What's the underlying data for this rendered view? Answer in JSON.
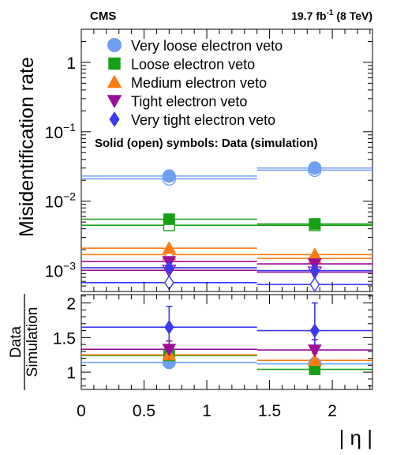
{
  "header": {
    "experiment": "CMS",
    "lumi_value": "19.7 fb",
    "lumi_exp": "-1",
    "lumi_energy": " (8 TeV)"
  },
  "note": "Solid (open) symbols: Data (simulation)",
  "chart_data": [
    {
      "type": "scatter",
      "panel": "top",
      "ylabel": "Misidentification rate",
      "yscale": "log",
      "ylim": [
        0.0005,
        3
      ],
      "xlim": [
        0,
        2.32
      ],
      "y_ticklabels": [
        {
          "value": 1,
          "base": "1",
          "exp": ""
        },
        {
          "value": 0.1,
          "base": "10",
          "exp": "−1"
        },
        {
          "value": 0.01,
          "base": "10",
          "exp": "−2"
        },
        {
          "value": 0.001,
          "base": "10",
          "exp": "−3"
        }
      ],
      "bins": [
        [
          0,
          1.4
        ],
        [
          1.4,
          2.32
        ]
      ],
      "x": [
        0.7,
        1.86
      ],
      "legend_position": "top-left",
      "series": [
        {
          "name": "Very loose electron veto",
          "marker": "circle",
          "color": "#6F9FF0",
          "data": [
            0.023,
            0.03
          ],
          "simulation": [
            0.021,
            0.028
          ]
        },
        {
          "name": "Loose electron veto",
          "marker": "square",
          "color": "#16A016",
          "data": [
            0.0055,
            0.0047
          ],
          "simulation": [
            0.0045,
            0.0045
          ]
        },
        {
          "name": "Medium electron veto",
          "marker": "triangle-up",
          "color": "#FF7B10",
          "data": [
            0.0021,
            0.0017
          ],
          "simulation": [
            0.0017,
            0.0015
          ]
        },
        {
          "name": "Tight electron veto",
          "marker": "triangle-down",
          "color": "#9A0E9A",
          "data": [
            0.00135,
            0.00125
          ],
          "simulation": [
            0.00101,
            0.00095
          ]
        },
        {
          "name": "Very tight electron veto",
          "marker": "diamond",
          "color": "#3A3AF0",
          "data": [
            0.0011,
            0.001
          ],
          "simulation": [
            0.00067,
            0.00063
          ]
        }
      ]
    },
    {
      "type": "scatter",
      "panel": "bottom",
      "ylabel_num": "Data",
      "ylabel_den": "Simulation",
      "xlabel": "| η |",
      "ylim": [
        0.75,
        2.12
      ],
      "xlim": [
        0,
        2.32
      ],
      "x_ticks": [
        0,
        0.5,
        1,
        1.5,
        2
      ],
      "x_ticklabels": [
        "0",
        "0.5",
        "1",
        "1.5",
        "2"
      ],
      "y_ticks": [
        1,
        1.5,
        2
      ],
      "y_ticklabels": [
        "1",
        "1.5",
        "2"
      ],
      "bins": [
        [
          0,
          1.4
        ],
        [
          1.4,
          2.32
        ]
      ],
      "x": [
        0.7,
        1.86
      ],
      "series": [
        {
          "name": "Very loose electron veto",
          "marker": "circle",
          "color": "#6F9FF0",
          "values": [
            1.14,
            1.12
          ],
          "err_low": [
            0.02,
            0.02
          ],
          "err_high": [
            0.02,
            0.02
          ]
        },
        {
          "name": "Loose electron veto",
          "marker": "square",
          "color": "#16A016",
          "values": [
            1.24,
            1.04
          ],
          "err_low": [
            0.04,
            0.04
          ],
          "err_high": [
            0.04,
            0.04
          ]
        },
        {
          "name": "Medium electron veto",
          "marker": "triangle-up",
          "color": "#FF7B10",
          "values": [
            1.25,
            1.17
          ],
          "err_low": [
            0.08,
            0.1
          ],
          "err_high": [
            0.08,
            0.1
          ]
        },
        {
          "name": "Tight electron veto",
          "marker": "triangle-down",
          "color": "#9A0E9A",
          "values": [
            1.33,
            1.32
          ],
          "err_low": [
            0.12,
            0.15
          ],
          "err_high": [
            0.12,
            0.15
          ]
        },
        {
          "name": "Very tight electron veto",
          "marker": "diamond",
          "color": "#3A3AF0",
          "values": [
            1.65,
            1.6
          ],
          "err_low": [
            0.3,
            0.4
          ],
          "err_high": [
            0.3,
            0.4
          ]
        }
      ]
    }
  ]
}
